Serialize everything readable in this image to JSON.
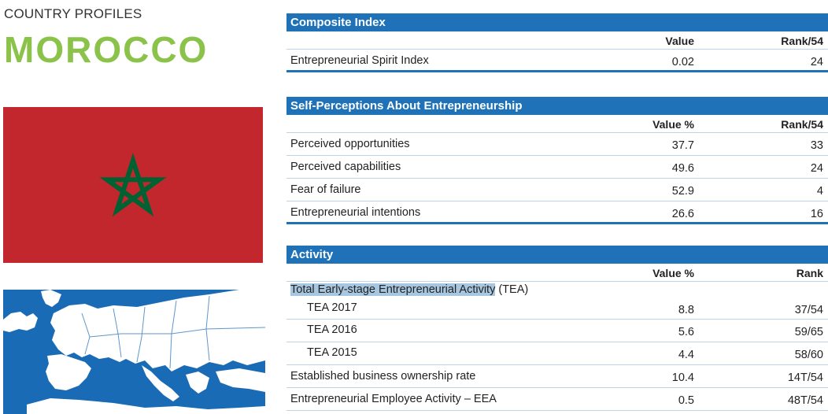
{
  "header": {
    "section_label": "COUNTRY PROFILES",
    "country": "MOROCCO"
  },
  "colors": {
    "accent_blue": "#1f72b8",
    "country_green": "#8bc34a",
    "flag_red": "#c1272d",
    "flag_star_green": "#006233"
  },
  "composite": {
    "title": "Composite Index",
    "col_value": "Value",
    "col_rank": "Rank/54",
    "rows": [
      {
        "label": "Entrepreneurial Spirit Index",
        "value": "0.02",
        "rank": "24"
      }
    ]
  },
  "self_perceptions": {
    "title": "Self-Perceptions About Entrepreneurship",
    "col_value": "Value %",
    "col_rank": "Rank/54",
    "rows": [
      {
        "label": "Perceived opportunities",
        "value": "37.7",
        "rank": "33"
      },
      {
        "label": "Perceived capabilities",
        "value": "49.6",
        "rank": "24"
      },
      {
        "label": "Fear of failure",
        "value": "52.9",
        "rank": "4"
      },
      {
        "label": "Entrepreneurial intentions",
        "value": "26.6",
        "rank": "16"
      }
    ]
  },
  "activity": {
    "title": "Activity",
    "col_value": "Value %",
    "col_rank": "Rank",
    "tea_label_highlight": "Total Early-stage Entrepreneurial Activity",
    "tea_label_suffix": " (TEA)",
    "tea_rows": [
      {
        "label": "TEA 2017",
        "value": "8.8",
        "rank": "37/54"
      },
      {
        "label": "TEA 2016",
        "value": "5.6",
        "rank": "59/65"
      },
      {
        "label": "TEA 2015",
        "value": "4.4",
        "rank": "58/60"
      }
    ],
    "rows": [
      {
        "label": "Established business ownership rate",
        "value": "10.4",
        "rank": "14T/54"
      },
      {
        "label": "Entrepreneurial Employee Activity – EEA",
        "value": "0.5",
        "rank": "48T/54"
      }
    ]
  }
}
